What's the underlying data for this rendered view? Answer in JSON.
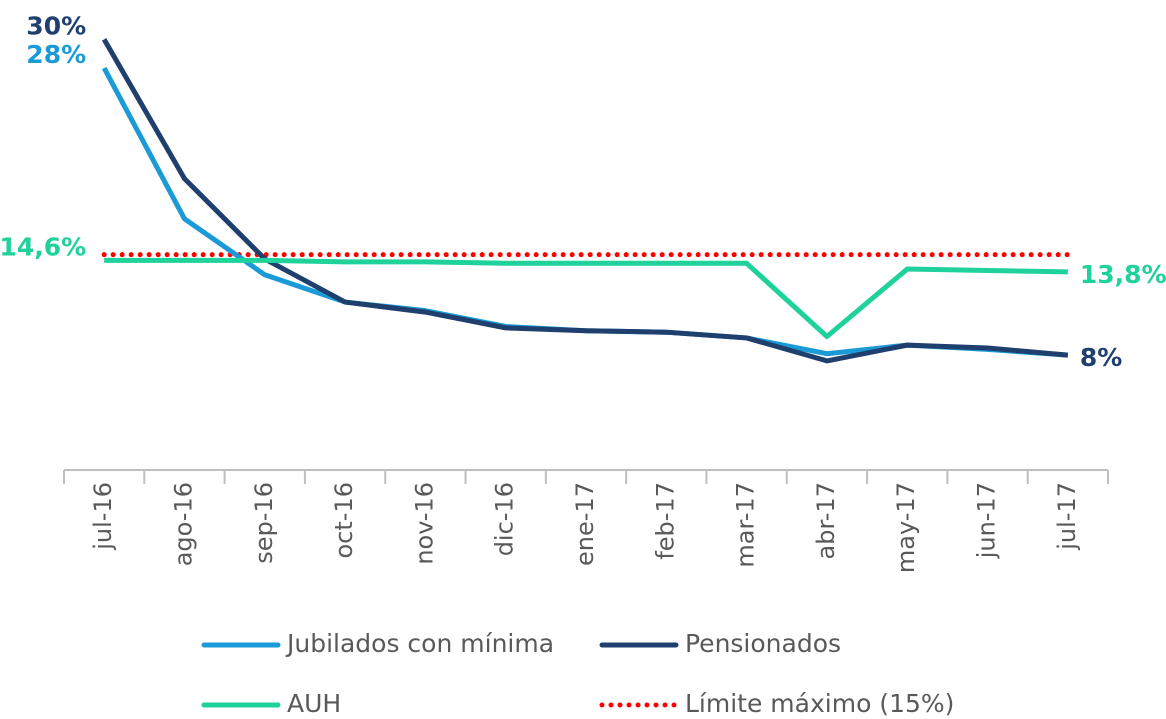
{
  "chart_data": {
    "type": "line",
    "categories": [
      "jul-16",
      "ago-16",
      "sep-16",
      "oct-16",
      "nov-16",
      "dic-16",
      "ene-17",
      "feb-17",
      "mar-17",
      "abr-17",
      "may-17",
      "jun-17",
      "jul-17"
    ],
    "ylim": [
      0,
      31
    ],
    "series": [
      {
        "name": "Jubilados con mínima",
        "color": "#1a9ad6",
        "values": [
          28,
          17.5,
          13.6,
          11.7,
          11.1,
          10.0,
          9.7,
          9.6,
          9.2,
          8.1,
          8.7,
          8.4,
          8.0
        ],
        "value_labels": [
          "28%",
          null,
          null,
          null,
          null,
          null,
          null,
          null,
          null,
          null,
          null,
          null,
          null
        ]
      },
      {
        "name": "Pensionados",
        "color": "#1f3f6e",
        "values": [
          30,
          20.3,
          14.7,
          11.7,
          11.0,
          9.9,
          9.7,
          9.6,
          9.2,
          7.6,
          8.7,
          8.5,
          8.0
        ],
        "value_labels": [
          "30%",
          null,
          null,
          null,
          null,
          null,
          null,
          null,
          null,
          null,
          null,
          null,
          "8%"
        ]
      },
      {
        "name": "AUH",
        "color": "#1fd19a",
        "values": [
          14.6,
          14.6,
          14.6,
          14.5,
          14.5,
          14.4,
          14.4,
          14.4,
          14.4,
          9.3,
          14.0,
          13.9,
          13.8
        ],
        "value_labels": [
          "14,6%",
          null,
          null,
          null,
          null,
          null,
          null,
          null,
          null,
          null,
          null,
          null,
          "13,8%"
        ]
      },
      {
        "name": "Límite máximo (15%)",
        "color": "#ff0000",
        "style": "dotted",
        "values": [
          15,
          15,
          15,
          15,
          15,
          15,
          15,
          15,
          15,
          15,
          15,
          15,
          15
        ]
      }
    ]
  }
}
